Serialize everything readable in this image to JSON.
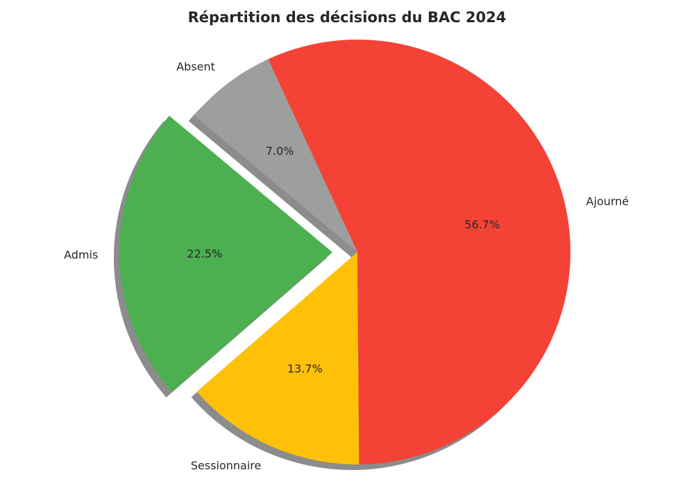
{
  "chart_data": {
    "type": "pie",
    "title": "Répartition des décisions du BAC 2024",
    "slices": [
      {
        "label": "Admis",
        "value": 22.5,
        "pct_label": "22.5%",
        "color": "#4caf50",
        "exploded": true
      },
      {
        "label": "Sessionnaire",
        "value": 13.7,
        "pct_label": "13.7%",
        "color": "#ffc107",
        "exploded": false
      },
      {
        "label": "Ajourné",
        "value": 56.7,
        "pct_label": "56.7%",
        "color": "#f44336",
        "exploded": false
      },
      {
        "label": "Absent",
        "value": 7.0,
        "pct_label": "7.0%",
        "color": "#9e9e9e",
        "exploded": false
      }
    ],
    "start_angle_deg": 140,
    "direction": "counterclockwise",
    "shadow": true,
    "legend": false
  }
}
